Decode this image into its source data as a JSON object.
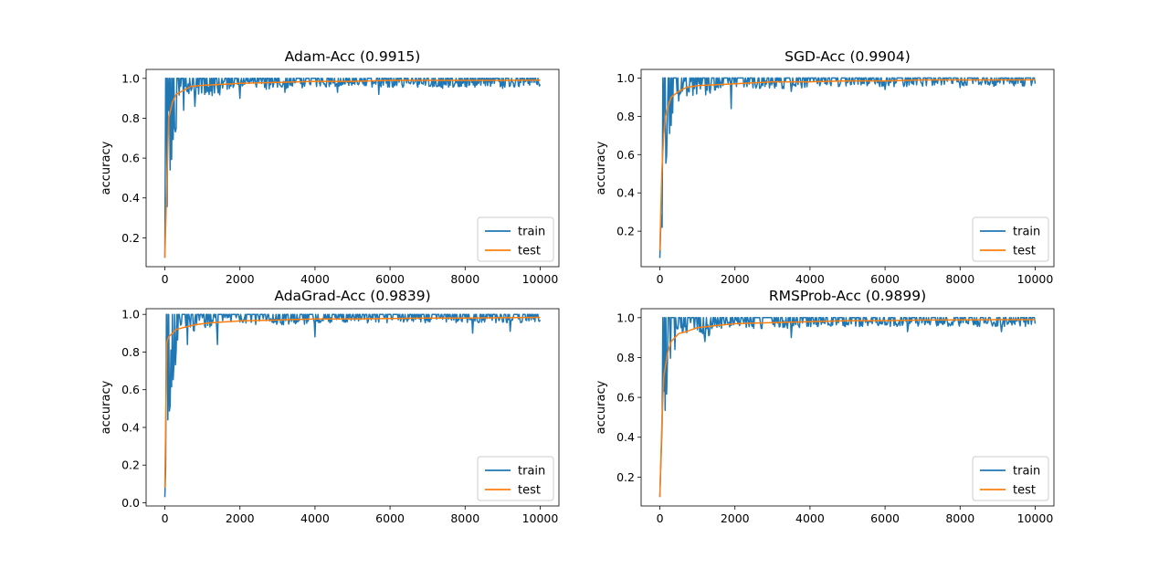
{
  "figure": {
    "colors": {
      "train": "#1f77b4",
      "test": "#ff7f0e",
      "axis": "#000000",
      "legend_border": "#cccccc"
    }
  },
  "chart_data": [
    {
      "type": "line",
      "title": "Adam-Acc (0.9915)",
      "xlabel": "",
      "ylabel": "accuracy",
      "xlim": [
        -500,
        10500
      ],
      "ylim": [
        0.055,
        1.045
      ],
      "xticks": [
        0,
        2000,
        4000,
        6000,
        8000,
        10000
      ],
      "yticks": [
        0.2,
        0.4,
        0.6,
        0.8,
        1.0
      ],
      "ytick_labels": [
        "0.2",
        "0.4",
        "0.6",
        "0.8",
        "1.0"
      ],
      "legend": {
        "position": "lower right",
        "entries": [
          "train",
          "test"
        ]
      },
      "series": [
        {
          "name": "train",
          "color": "#1f77b4",
          "final": 0.97,
          "start": 0.1,
          "min_dips": [
            [
              100,
              0.84
            ],
            [
              300,
              0.75
            ],
            [
              500,
              0.84
            ],
            [
              800,
              0.86
            ],
            [
              2000,
              0.9
            ],
            [
              3200,
              0.93
            ],
            [
              4600,
              0.93
            ],
            [
              5700,
              0.92
            ],
            [
              7400,
              0.95
            ],
            [
              9000,
              0.95
            ]
          ]
        },
        {
          "name": "test",
          "color": "#ff7f0e",
          "x": [
            0,
            100,
            200,
            300,
            500,
            700,
            1000,
            1500,
            2000,
            3000,
            4000,
            5000,
            6000,
            7000,
            8000,
            9000,
            10000
          ],
          "y": [
            0.1,
            0.8,
            0.88,
            0.92,
            0.94,
            0.96,
            0.965,
            0.97,
            0.975,
            0.98,
            0.985,
            0.985,
            0.99,
            0.99,
            0.99,
            0.99,
            0.9915
          ]
        }
      ]
    },
    {
      "type": "line",
      "title": "SGD-Acc (0.9904)",
      "xlabel": "",
      "ylabel": "accuracy",
      "xlim": [
        -500,
        10500
      ],
      "ylim": [
        0.0145,
        1.045
      ],
      "xticks": [
        0,
        2000,
        4000,
        6000,
        8000,
        10000
      ],
      "yticks": [
        0.2,
        0.4,
        0.6,
        0.8,
        1.0
      ],
      "ytick_labels": [
        "0.2",
        "0.4",
        "0.6",
        "0.8",
        "1.0"
      ],
      "legend": {
        "position": "lower right",
        "entries": [
          "train",
          "test"
        ]
      },
      "series": [
        {
          "name": "train",
          "color": "#1f77b4",
          "final": 0.97,
          "start": 0.06,
          "min_dips": [
            [
              50,
              0.22
            ],
            [
              100,
              0.7
            ],
            [
              200,
              0.78
            ],
            [
              500,
              0.88
            ],
            [
              1900,
              0.84
            ],
            [
              3500,
              0.93
            ],
            [
              6000,
              0.94
            ],
            [
              8000,
              0.95
            ]
          ]
        },
        {
          "name": "test",
          "color": "#ff7f0e",
          "x": [
            0,
            50,
            100,
            150,
            200,
            300,
            500,
            700,
            1000,
            1500,
            2000,
            3000,
            4000,
            5000,
            6000,
            7000,
            8000,
            9000,
            10000
          ],
          "y": [
            0.1,
            0.5,
            0.7,
            0.8,
            0.84,
            0.9,
            0.93,
            0.95,
            0.96,
            0.965,
            0.97,
            0.98,
            0.98,
            0.985,
            0.985,
            0.99,
            0.99,
            0.99,
            0.9904
          ]
        }
      ]
    },
    {
      "type": "line",
      "title": "AdaGrad-Acc (0.9839)",
      "xlabel": "",
      "ylabel": "accuracy",
      "xlim": [
        -500,
        10500
      ],
      "ylim": [
        -0.017,
        1.03
      ],
      "xticks": [
        0,
        2000,
        4000,
        6000,
        8000,
        10000
      ],
      "yticks": [
        0.0,
        0.2,
        0.4,
        0.6,
        0.8,
        1.0
      ],
      "ytick_labels": [
        "0.0",
        "0.2",
        "0.4",
        "0.6",
        "0.8",
        "1.0"
      ],
      "legend": {
        "position": "lower right",
        "entries": [
          "train",
          "test"
        ]
      },
      "series": [
        {
          "name": "train",
          "color": "#1f77b4",
          "final": 0.97,
          "start": 0.03,
          "min_dips": [
            [
              150,
              0.81
            ],
            [
              300,
              0.81
            ],
            [
              600,
              0.84
            ],
            [
              1400,
              0.84
            ],
            [
              4000,
              0.88
            ],
            [
              8200,
              0.9
            ],
            [
              9200,
              0.91
            ]
          ]
        },
        {
          "name": "test",
          "color": "#ff7f0e",
          "x": [
            0,
            50,
            100,
            200,
            300,
            500,
            800,
            1200,
            2000,
            3000,
            4000,
            5000,
            6000,
            7000,
            8000,
            9000,
            10000
          ],
          "y": [
            0.08,
            0.85,
            0.88,
            0.9,
            0.92,
            0.93,
            0.945,
            0.955,
            0.965,
            0.97,
            0.975,
            0.975,
            0.978,
            0.98,
            0.98,
            0.982,
            0.9839
          ]
        }
      ]
    },
    {
      "type": "line",
      "title": "RMSProb-Acc (0.9899)",
      "xlabel": "",
      "ylabel": "accuracy",
      "xlim": [
        -500,
        10500
      ],
      "ylim": [
        0.055,
        1.045
      ],
      "xticks": [
        0,
        2000,
        4000,
        6000,
        8000,
        10000
      ],
      "yticks": [
        0.2,
        0.4,
        0.6,
        0.8,
        1.0
      ],
      "ytick_labels": [
        "0.2",
        "0.4",
        "0.6",
        "0.8",
        "1.0"
      ],
      "legend": {
        "position": "lower right",
        "entries": [
          "train",
          "test"
        ]
      },
      "series": [
        {
          "name": "train",
          "color": "#1f77b4",
          "final": 0.97,
          "start": 0.1,
          "min_dips": [
            [
              50,
              0.47
            ],
            [
              100,
              0.63
            ],
            [
              200,
              0.78
            ],
            [
              400,
              0.84
            ],
            [
              1200,
              0.88
            ],
            [
              3500,
              0.9
            ],
            [
              6600,
              0.93
            ],
            [
              9100,
              0.93
            ]
          ]
        },
        {
          "name": "test",
          "color": "#ff7f0e",
          "x": [
            0,
            50,
            100,
            200,
            300,
            500,
            700,
            1000,
            1500,
            2000,
            3000,
            4000,
            5000,
            6000,
            7000,
            8000,
            9000,
            10000
          ],
          "y": [
            0.1,
            0.45,
            0.7,
            0.82,
            0.88,
            0.92,
            0.93,
            0.95,
            0.96,
            0.97,
            0.975,
            0.98,
            0.985,
            0.985,
            0.988,
            0.989,
            0.99,
            0.9899
          ]
        }
      ]
    }
  ]
}
